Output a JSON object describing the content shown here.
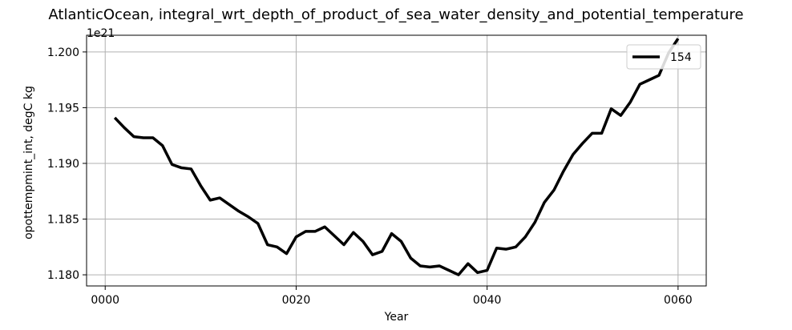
{
  "chart_data": {
    "type": "line",
    "title": "AtlanticOcean, integral_wrt_depth_of_product_of_sea_water_density_and_potential_temperature",
    "xlabel": "Year",
    "ylabel": "opottempmint_int, degC kg",
    "y_offset_label": "1e21",
    "y_scale": 1e+21,
    "xlim": [
      -1.95,
      62.95
    ],
    "ylim": [
      1.179,
      1.2015
    ],
    "x_ticks": [
      0,
      20,
      40,
      60
    ],
    "x_tick_labels": [
      "0000",
      "0020",
      "0040",
      "0060"
    ],
    "y_ticks": [
      1.18,
      1.185,
      1.19,
      1.195,
      1.2
    ],
    "y_tick_labels": [
      "1.180",
      "1.185",
      "1.190",
      "1.195",
      "1.200"
    ],
    "grid": true,
    "legend_position": "top-right",
    "colors": {
      "line": "#000000",
      "grid": "#b0b0b0"
    },
    "series": [
      {
        "name": "154",
        "x": [
          1,
          2,
          3,
          4,
          5,
          6,
          7,
          8,
          9,
          10,
          11,
          12,
          13,
          14,
          15,
          16,
          17,
          18,
          19,
          20,
          21,
          22,
          23,
          24,
          25,
          26,
          27,
          28,
          29,
          30,
          31,
          32,
          33,
          34,
          35,
          36,
          37,
          38,
          39,
          40,
          41,
          42,
          43,
          44,
          45,
          46,
          47,
          48,
          49,
          50,
          51,
          52,
          53,
          54,
          55,
          56,
          57,
          58,
          59,
          60
        ],
        "values": [
          1.1941,
          1.1932,
          1.1924,
          1.1923,
          1.1923,
          1.1916,
          1.1899,
          1.1896,
          1.1895,
          1.188,
          1.1867,
          1.1869,
          1.1863,
          1.1857,
          1.1852,
          1.1846,
          1.1827,
          1.1825,
          1.1819,
          1.1834,
          1.1839,
          1.1839,
          1.1843,
          1.1835,
          1.1827,
          1.1838,
          1.183,
          1.1818,
          1.1821,
          1.1837,
          1.183,
          1.1815,
          1.1808,
          1.1807,
          1.1808,
          1.1804,
          1.18,
          1.181,
          1.1802,
          1.1804,
          1.1824,
          1.1823,
          1.1825,
          1.1834,
          1.1847,
          1.1865,
          1.1876,
          1.1893,
          1.1908,
          1.1918,
          1.1927,
          1.1927,
          1.1949,
          1.1943,
          1.1955,
          1.1971,
          1.1975,
          1.1979,
          1.1999,
          1.2012
        ]
      }
    ]
  }
}
